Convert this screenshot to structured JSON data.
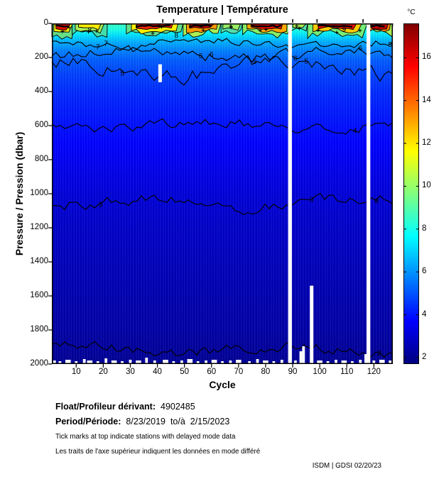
{
  "title": "Temperature | Température",
  "credit": "ISDM | GDSI  02/20/23",
  "colorbar": {
    "unit_label": "°C",
    "min": 1.7,
    "max": 17.6,
    "ticks": [
      16,
      14,
      12,
      10,
      8,
      6,
      4,
      2
    ],
    "colormap": "jet",
    "top_color": "#800000",
    "bottom_color": "#000085"
  },
  "axes": {
    "x": {
      "label": "Cycle",
      "min": 1,
      "max": 127,
      "ticks": [
        10,
        20,
        30,
        40,
        50,
        60,
        70,
        80,
        90,
        100,
        110,
        120
      ]
    },
    "y": {
      "label": "Pressure / Pression (dbar)",
      "min": 0,
      "max": 2000,
      "ticks": [
        0,
        200,
        400,
        600,
        800,
        1000,
        1200,
        1400,
        1600,
        1800,
        2000
      ]
    }
  },
  "footer": {
    "float_label": "Float/Profileur dérivant:",
    "float_value": "4902485",
    "period_label": "Period/Période:",
    "period_value": "8/23/2019  to/à  2/15/2023",
    "note_en": "Tick marks at top indicate stations with delayed mode data",
    "note_fr": "Les traits de l'axe supérieur indiquent les données en mode différé"
  },
  "chart_data": {
    "type": "heatmap",
    "title": "Temperature | Température",
    "xlabel": "Cycle",
    "ylabel": "Pressure / Pression (dbar)",
    "legend": "colorbar right, jet colormap, °C",
    "x_range": [
      1,
      127
    ],
    "y_range": [
      0,
      2000
    ],
    "temp_range_c": [
      1.7,
      17.6
    ],
    "colormap": "jet",
    "grid": false,
    "depth_profile": [
      {
        "p": 0,
        "t": 8.6
      },
      {
        "p": 40,
        "t": 8.0
      },
      {
        "p": 70,
        "t": 7.2
      },
      {
        "p": 110,
        "t": 6.4
      },
      {
        "p": 160,
        "t": 5.7
      },
      {
        "p": 220,
        "t": 5.1
      },
      {
        "p": 300,
        "t": 4.7
      },
      {
        "p": 420,
        "t": 4.3
      },
      {
        "p": 560,
        "t": 4.0
      },
      {
        "p": 700,
        "t": 3.7
      },
      {
        "p": 850,
        "t": 3.4
      },
      {
        "p": 1000,
        "t": 3.1
      },
      {
        "p": 1200,
        "t": 2.85
      },
      {
        "p": 1400,
        "t": 2.65
      },
      {
        "p": 1600,
        "t": 2.45
      },
      {
        "p": 1800,
        "t": 2.3
      },
      {
        "p": 1950,
        "t": 2.1
      },
      {
        "p": 2000,
        "t": 2.0
      }
    ],
    "contours": [
      {
        "level": 7,
        "pressure": 115,
        "amp": 9,
        "label_cycles": [
          18,
          21
        ]
      },
      {
        "level": 6,
        "pressure": 180,
        "amp": 13,
        "label_cycles": [
          56,
          60,
          91,
          115
        ]
      },
      {
        "level": 5,
        "pressure": 270,
        "amp": 17,
        "label_cycles": [
          27,
          76,
          95
        ]
      },
      {
        "level": 4,
        "pressure": 600,
        "amp": 11,
        "label_cycles": [
          113
        ]
      },
      {
        "level": 3,
        "pressure": 1055,
        "amp": 13,
        "label_cycles": [
          19,
          97,
          121
        ]
      },
      {
        "level": 2,
        "pressure": 1915,
        "amp": 12,
        "label_cycles": [
          94,
          122
        ]
      }
    ],
    "surface_labels": [
      {
        "text": "8",
        "c": 15,
        "p": 15
      },
      {
        "text": "8",
        "c": 47,
        "p": 45
      },
      {
        "text": "9",
        "c": 109,
        "p": 10
      },
      {
        "text": "8",
        "c": 126,
        "p": 100
      }
    ],
    "surface_patches": [
      {
        "c0": 1,
        "c1": 9,
        "layers": [
          {
            "color": "#66dd88",
            "h": 17
          },
          {
            "color": "#ffee00",
            "h": 12
          },
          {
            "color": "#dd1100",
            "h": 7,
            "smudge": true
          }
        ]
      },
      {
        "c0": 9,
        "c1": 21,
        "layers": [
          {
            "color": "#44ddaa",
            "h": 15
          },
          {
            "color": "#aaee55",
            "h": 11
          },
          {
            "color": "#ffee00",
            "h": 7
          }
        ]
      },
      {
        "c0": 29,
        "c1": 49,
        "layers": [
          {
            "color": "#66dd88",
            "h": 15
          },
          {
            "color": "#ffee00",
            "h": 11
          },
          {
            "color": "#ee2200",
            "h": 6,
            "smudge": true
          }
        ]
      },
      {
        "c0": 50,
        "c1": 63,
        "layers": [
          {
            "color": "#aaee55",
            "h": 14
          },
          {
            "color": "#ff9900",
            "h": 10
          },
          {
            "color": "#dd0000",
            "h": 6,
            "smudge": true
          }
        ]
      },
      {
        "c0": 64,
        "c1": 71,
        "layers": [
          {
            "color": "#55ddaa",
            "h": 11
          },
          {
            "color": "#99ee66",
            "h": 7
          }
        ]
      },
      {
        "c0": 72,
        "c1": 89,
        "layers": [
          {
            "color": "#88ee66",
            "h": 15
          },
          {
            "color": "#ffaa00",
            "h": 10
          },
          {
            "color": "#ee1100",
            "h": 7,
            "smudge": true
          }
        ]
      },
      {
        "c0": 90,
        "c1": 95,
        "layers": [
          {
            "color": "#55ddaa",
            "h": 10
          },
          {
            "color": "#aaee55",
            "h": 6
          }
        ]
      },
      {
        "c0": 96,
        "c1": 117,
        "layers": [
          {
            "color": "#77ee77",
            "h": 15
          },
          {
            "color": "#ffcc00",
            "h": 10
          },
          {
            "color": "#ee1100",
            "h": 7,
            "smudge": true
          }
        ]
      },
      {
        "c0": 118,
        "c1": 127,
        "layers": [
          {
            "color": "#aaee55",
            "h": 14
          },
          {
            "color": "#ff8800",
            "h": 10
          },
          {
            "color": "#bb0000",
            "h": 8,
            "smudge": true
          }
        ]
      }
    ],
    "gaps": [
      {
        "c": 41,
        "p0": 240,
        "p1": 345,
        "w": 1.3
      },
      {
        "c": 89,
        "p0": 0,
        "p1": 2000,
        "w": 1.4
      },
      {
        "c": 97,
        "p0": 1540,
        "p1": 2000,
        "w": 1.3
      },
      {
        "c": 118,
        "p0": 0,
        "p1": 2000,
        "w": 1.4
      }
    ],
    "bottom_notches": [
      {
        "c": 2,
        "w": 1,
        "h": 5
      },
      {
        "c": 4,
        "w": 1,
        "h": 4
      },
      {
        "c": 7,
        "w": 2,
        "h": 6
      },
      {
        "c": 10,
        "w": 1,
        "h": 4
      },
      {
        "c": 13,
        "w": 1,
        "h": 7
      },
      {
        "c": 15,
        "w": 2,
        "h": 5
      },
      {
        "c": 18,
        "w": 1,
        "h": 4
      },
      {
        "c": 21,
        "w": 1,
        "h": 8
      },
      {
        "c": 24,
        "w": 2,
        "h": 5
      },
      {
        "c": 27,
        "w": 1,
        "h": 4
      },
      {
        "c": 30,
        "w": 1,
        "h": 6
      },
      {
        "c": 33,
        "w": 2,
        "h": 5
      },
      {
        "c": 36,
        "w": 1,
        "h": 9
      },
      {
        "c": 39,
        "w": 1,
        "h": 5
      },
      {
        "c": 43,
        "w": 2,
        "h": 6
      },
      {
        "c": 46,
        "w": 1,
        "h": 4
      },
      {
        "c": 49,
        "w": 1,
        "h": 5
      },
      {
        "c": 52,
        "w": 2,
        "h": 7
      },
      {
        "c": 55,
        "w": 1,
        "h": 4
      },
      {
        "c": 58,
        "w": 1,
        "h": 5
      },
      {
        "c": 61,
        "w": 2,
        "h": 6
      },
      {
        "c": 64,
        "w": 1,
        "h": 4
      },
      {
        "c": 67,
        "w": 1,
        "h": 5
      },
      {
        "c": 70,
        "w": 2,
        "h": 6
      },
      {
        "c": 74,
        "w": 1,
        "h": 4
      },
      {
        "c": 77,
        "w": 1,
        "h": 7
      },
      {
        "c": 80,
        "w": 2,
        "h": 5
      },
      {
        "c": 83,
        "w": 1,
        "h": 4
      },
      {
        "c": 86,
        "w": 1,
        "h": 6
      },
      {
        "c": 91,
        "w": 1,
        "h": 5
      },
      {
        "c": 93,
        "w": 1,
        "h": 18
      },
      {
        "c": 94,
        "w": 1,
        "h": 25
      },
      {
        "c": 100,
        "w": 2,
        "h": 5
      },
      {
        "c": 103,
        "w": 1,
        "h": 4
      },
      {
        "c": 106,
        "w": 1,
        "h": 6
      },
      {
        "c": 109,
        "w": 2,
        "h": 5
      },
      {
        "c": 112,
        "w": 1,
        "h": 4
      },
      {
        "c": 115,
        "w": 1,
        "h": 6
      },
      {
        "c": 117,
        "w": 1,
        "h": 14
      },
      {
        "c": 120,
        "w": 1,
        "h": 5
      },
      {
        "c": 123,
        "w": 2,
        "h": 6
      },
      {
        "c": 126,
        "w": 1,
        "h": 5
      }
    ],
    "delayed_mode_tick_cycles": [
      42,
      46,
      59,
      67,
      75,
      90,
      99,
      116
    ]
  }
}
